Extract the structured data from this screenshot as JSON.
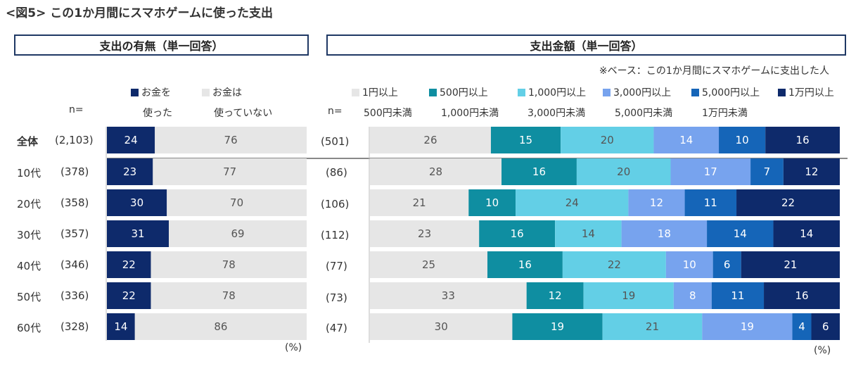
{
  "title": "<図5> この1か月間にスマホゲームに使った支出",
  "left_header": "支出の有無（単一回答）",
  "right_header": "支出金額（単一回答）",
  "base_note": "※ベース：この1か月間にスマホゲームに支出した人",
  "n_label": "n=",
  "percent_label": "(%)",
  "colors": {
    "header_border": "#1f3864",
    "spent": "#0e2a6b",
    "not_spent": "#e6e6e6",
    "s1": "#e6e6e6",
    "s2": "#0f8ea1",
    "s3": "#63cfe6",
    "s4": "#77a3ee",
    "s5": "#1565b8",
    "s6": "#0e2a6b",
    "separator": "#888888"
  },
  "legend_left": [
    {
      "line1": "お金を",
      "line2": "使った",
      "color": "#0e2a6b"
    },
    {
      "line1": "お金は",
      "line2": "使っていない",
      "color": "#e6e6e6"
    }
  ],
  "legend_right": [
    {
      "line1": "1円以上",
      "line2": "500円未満",
      "color": "#e6e6e6"
    },
    {
      "line1": "500円以上",
      "line2": "1,000円未満",
      "color": "#0f8ea1"
    },
    {
      "line1": "1,000円以上",
      "line2": "3,000円未満",
      "color": "#63cfe6"
    },
    {
      "line1": "3,000円以上",
      "line2": "5,000円未満",
      "color": "#77a3ee"
    },
    {
      "line1": "5,000円以上",
      "line2": "1万円未満",
      "color": "#1565b8"
    },
    {
      "line1": "1万円以上",
      "line2": "",
      "color": "#0e2a6b"
    }
  ],
  "rows": [
    {
      "label": "全体",
      "bold": true,
      "n_left": "(2,103)",
      "n_right": "(501)"
    },
    {
      "label": "10代",
      "bold": false,
      "n_left": "(378)",
      "n_right": "(86)"
    },
    {
      "label": "20代",
      "bold": false,
      "n_left": "(358)",
      "n_right": "(106)"
    },
    {
      "label": "30代",
      "bold": false,
      "n_left": "(357)",
      "n_right": "(112)"
    },
    {
      "label": "40代",
      "bold": false,
      "n_left": "(346)",
      "n_right": "(77)"
    },
    {
      "label": "50代",
      "bold": false,
      "n_left": "(336)",
      "n_right": "(73)"
    },
    {
      "label": "60代",
      "bold": false,
      "n_left": "(328)",
      "n_right": "(47)"
    }
  ],
  "chart_data": [
    {
      "type": "bar",
      "stacked": true,
      "orientation": "horizontal",
      "title": "支出の有無（単一回答）",
      "categories": [
        "全体",
        "10代",
        "20代",
        "30代",
        "40代",
        "50代",
        "60代"
      ],
      "series": [
        {
          "name": "お金を使った",
          "values": [
            24,
            23,
            30,
            31,
            22,
            22,
            14
          ]
        },
        {
          "name": "お金は使っていない",
          "values": [
            76,
            77,
            70,
            69,
            78,
            78,
            86
          ]
        }
      ],
      "unit": "%"
    },
    {
      "type": "bar",
      "stacked": true,
      "orientation": "horizontal",
      "title": "支出金額（単一回答）",
      "categories": [
        "全体",
        "10代",
        "20代",
        "30代",
        "40代",
        "50代",
        "60代"
      ],
      "series": [
        {
          "name": "1円以上500円未満",
          "values": [
            26,
            28,
            21,
            23,
            25,
            33,
            30
          ]
        },
        {
          "name": "500円以上1,000円未満",
          "values": [
            15,
            16,
            10,
            16,
            16,
            12,
            19
          ]
        },
        {
          "name": "1,000円以上3,000円未満",
          "values": [
            20,
            20,
            24,
            14,
            22,
            19,
            21
          ]
        },
        {
          "name": "3,000円以上5,000円未満",
          "values": [
            14,
            17,
            12,
            18,
            10,
            8,
            19
          ]
        },
        {
          "name": "5,000円以上1万円未満",
          "values": [
            10,
            7,
            11,
            14,
            6,
            11,
            4
          ]
        },
        {
          "name": "1万円以上",
          "values": [
            16,
            12,
            22,
            14,
            21,
            16,
            6
          ]
        }
      ],
      "unit": "%"
    }
  ]
}
